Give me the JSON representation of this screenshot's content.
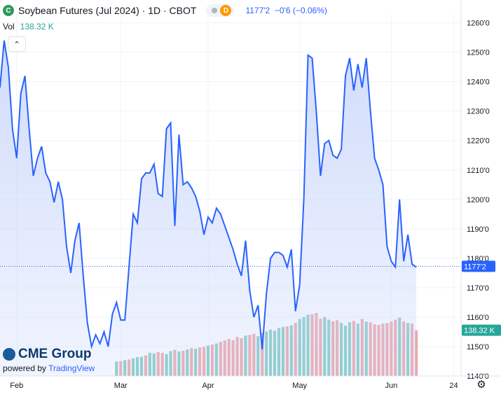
{
  "header": {
    "title": "Soybean Futures (Jul 2024) · 1D · CBOT",
    "logo_letter": "C",
    "interval_badge": "D",
    "last_price": "1177'2",
    "change": "−0'6 (−0.06%)"
  },
  "volume_legend": {
    "label": "Vol",
    "value": "138.32 K"
  },
  "collapse_button": "⌃",
  "watermark": {
    "brand": "CME Group",
    "powered_by": "powered by",
    "tradingview": "TradingView"
  },
  "colors": {
    "line": "#2962ff",
    "area_top": "#c9d6fb",
    "vol_up": "#7fcbc0",
    "vol_down": "#eea4a6",
    "price_tag": "#2962ff",
    "vol_tag": "#26a69a"
  },
  "chart_data": {
    "type": "line",
    "title": "Soybean Futures (Jul 2024)",
    "y_axis_ticks": [
      "1140'0",
      "1150'0",
      "1160'0",
      "1170'0",
      "1180'0",
      "1190'0",
      "1200'0",
      "1210'0",
      "1220'0",
      "1230'0",
      "1240'0",
      "1250'0",
      "1260'0"
    ],
    "ylim": [
      1140,
      1263
    ],
    "x_axis_ticks": [
      {
        "label": "Feb",
        "day": 4
      },
      {
        "label": "Mar",
        "day": 29
      },
      {
        "label": "Apr",
        "day": 50
      },
      {
        "label": "May",
        "day": 72
      },
      {
        "label": "Jun",
        "day": 94
      },
      {
        "label": "24",
        "day": 109
      }
    ],
    "current_price": 1177.25,
    "current_price_label": "1177'2",
    "current_volume_label": "138.32 K",
    "series": [
      {
        "values": [
          1238,
          1254,
          1245,
          1224,
          1214,
          1236,
          1242,
          1224,
          1208,
          1214,
          1218,
          1209,
          1206,
          1199,
          1206,
          1200,
          1184,
          1175,
          1186,
          1192,
          1174,
          1158,
          1150,
          1154,
          1151,
          1155,
          1150,
          1161,
          1165,
          1159,
          1159,
          1177,
          1195,
          1192,
          1207,
          1209,
          1209,
          1212,
          1202,
          1201,
          1224,
          1226,
          1191,
          1222,
          1205,
          1206,
          1204,
          1201,
          1196,
          1188,
          1194,
          1192,
          1197,
          1195,
          1191,
          1187,
          1183,
          1178,
          1174,
          1186,
          1169,
          1160,
          1164,
          1149,
          1168,
          1180,
          1182,
          1182,
          1181,
          1177,
          1183,
          1162,
          1171,
          1200,
          1249,
          1248,
          1230,
          1208,
          1219,
          1220,
          1215,
          1214,
          1217,
          1242,
          1248,
          1237,
          1246,
          1238,
          1248,
          1230,
          1214,
          1210,
          1205,
          1184,
          1179,
          1177,
          1200,
          1179,
          1188,
          1178,
          1177
        ]
      }
    ],
    "volume": {
      "unit": "K contracts",
      "values": [
        null,
        null,
        null,
        null,
        null,
        null,
        null,
        null,
        null,
        null,
        null,
        null,
        null,
        null,
        null,
        null,
        null,
        null,
        null,
        null,
        null,
        null,
        null,
        null,
        null,
        null,
        null,
        null,
        44,
        45,
        48,
        50,
        53,
        57,
        58,
        62,
        70,
        68,
        72,
        70,
        66,
        75,
        79,
        74,
        76,
        80,
        84,
        82,
        86,
        88,
        92,
        95,
        98,
        103,
        107,
        112,
        108,
        118,
        114,
        122,
        124,
        127,
        120,
        130,
        134,
        140,
        136,
        145,
        148,
        150,
        153,
        160,
        172,
        178,
        185,
        186,
        190,
        173,
        178,
        170,
        165,
        168,
        160,
        152,
        162,
        166,
        158,
        172,
        164,
        162,
        156,
        154,
        158,
        160,
        164,
        170,
        176,
        165,
        160,
        158,
        138
      ],
      "direction": [
        "u",
        "u",
        "u",
        "u",
        "u",
        "u",
        "u",
        "u",
        "u",
        "u",
        "u",
        "u",
        "u",
        "u",
        "u",
        "u",
        "u",
        "u",
        "u",
        "u",
        "u",
        "u",
        "u",
        "u",
        "u",
        "u",
        "u",
        "u",
        "u",
        "d",
        "u",
        "d",
        "u",
        "u",
        "u",
        "d",
        "u",
        "u",
        "d",
        "d",
        "u",
        "u",
        "d",
        "u",
        "d",
        "u",
        "d",
        "u",
        "d",
        "d",
        "u",
        "d",
        "u",
        "d",
        "d",
        "d",
        "d",
        "d",
        "d",
        "u",
        "d",
        "d",
        "u",
        "d",
        "u",
        "u",
        "u",
        "u",
        "u",
        "d",
        "u",
        "d",
        "u",
        "u",
        "u",
        "d",
        "d",
        "d",
        "u",
        "u",
        "d",
        "d",
        "u",
        "u",
        "u",
        "d",
        "u",
        "d",
        "u",
        "d",
        "d",
        "d",
        "d",
        "d",
        "d",
        "d",
        "u",
        "d",
        "u",
        "d",
        "d"
      ]
    }
  }
}
